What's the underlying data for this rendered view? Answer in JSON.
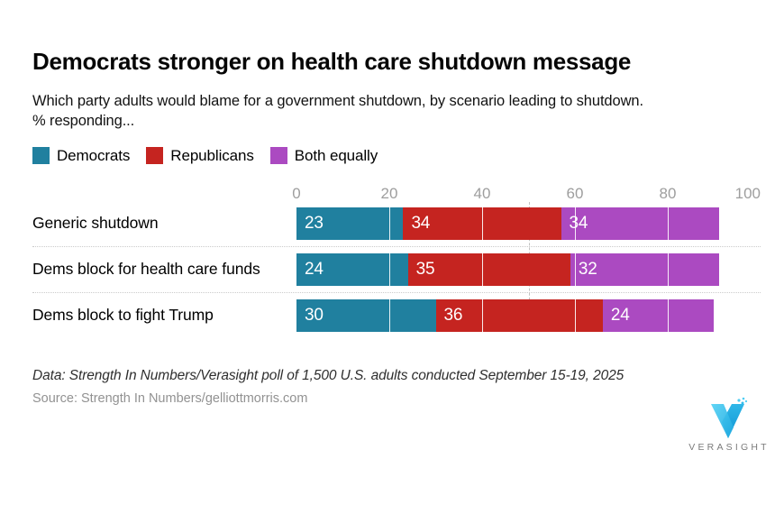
{
  "header": {
    "title": "Democrats stronger on health care shutdown message",
    "subtitle_line1": "Which party adults would blame for a government shutdown, by scenario leading to shutdown.",
    "subtitle_line2": "% responding..."
  },
  "legend": [
    {
      "label": "Democrats",
      "color": "#20809f"
    },
    {
      "label": "Republicans",
      "color": "#c52420"
    },
    {
      "label": "Both equally",
      "color": "#ab4ac1"
    }
  ],
  "chart_data": {
    "type": "bar",
    "orientation": "horizontal",
    "stacked": true,
    "categories": [
      "Generic shutdown",
      "Dems block for health care funds",
      "Dems block to fight Trump"
    ],
    "series": [
      {
        "name": "Democrats",
        "color": "#20809f",
        "values": [
          23,
          24,
          30
        ]
      },
      {
        "name": "Republicans",
        "color": "#c52420",
        "values": [
          34,
          35,
          36
        ]
      },
      {
        "name": "Both equally",
        "color": "#ab4ac1",
        "values": [
          34,
          32,
          24
        ]
      }
    ],
    "x_axis": {
      "ticks": [
        0,
        20,
        40,
        60,
        80,
        100
      ],
      "range": [
        0,
        100
      ]
    },
    "reference_line_x": 50,
    "grid": "white vertical tick lines drawn over bars; dotted row separators",
    "legend_position": "top-left",
    "value_labels": "inside-left of each segment, white"
  },
  "footer": {
    "data_note": "Data: Strength In Numbers/Verasight poll of 1,500 U.S. adults conducted September 15-19, 2025",
    "source": "Source: Strength In Numbers/gelliottmorris.com",
    "logo_text": "VERASIGHT"
  },
  "colors": {
    "democrats": "#20809f",
    "republicans": "#c52420",
    "both_equally": "#ab4ac1",
    "axis_label": "#9e9e9e",
    "logo_blue_light": "#4ecdf3",
    "logo_blue_dark": "#17a3dc"
  }
}
